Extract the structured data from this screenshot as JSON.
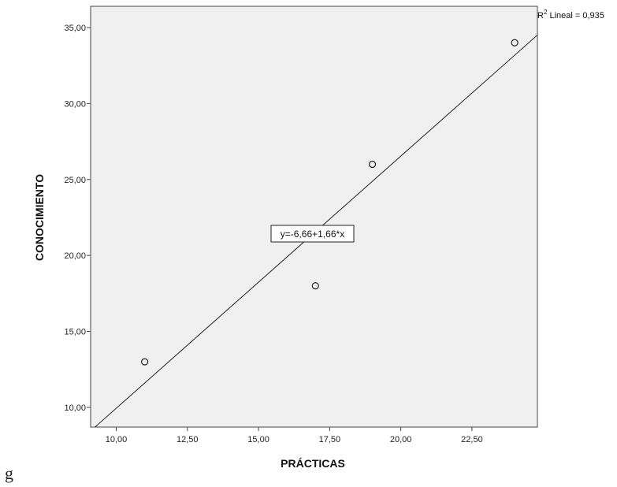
{
  "chart_data": {
    "type": "scatter",
    "xlabel": "PRÁCTICAS",
    "ylabel": "CONOCIMIENTO",
    "xlim": [
      9.1,
      24.8
    ],
    "ylim": [
      8.7,
      36.4
    ],
    "xticks": [
      "10,00",
      "12,50",
      "15,00",
      "17,50",
      "20,00",
      "22,50"
    ],
    "xtick_values": [
      10,
      12.5,
      15,
      17.5,
      20,
      22.5
    ],
    "yticks": [
      "10,00",
      "15,00",
      "20,00",
      "25,00",
      "30,00",
      "35,00"
    ],
    "ytick_values": [
      10,
      15,
      20,
      25,
      30,
      35
    ],
    "points": [
      {
        "x": 11,
        "y": 13
      },
      {
        "x": 17,
        "y": 18
      },
      {
        "x": 19,
        "y": 26
      },
      {
        "x": 24,
        "y": 34
      }
    ],
    "fit_line": {
      "intercept": -6.66,
      "slope": 1.66
    },
    "equation_label": "y=-6,66+1,66*x",
    "r2_prefix": "R",
    "r2_sup": "2",
    "r2_label": " Lineal = 0,935",
    "plot_background": "#f0f0f0",
    "grid": false
  },
  "stray_text": "g"
}
